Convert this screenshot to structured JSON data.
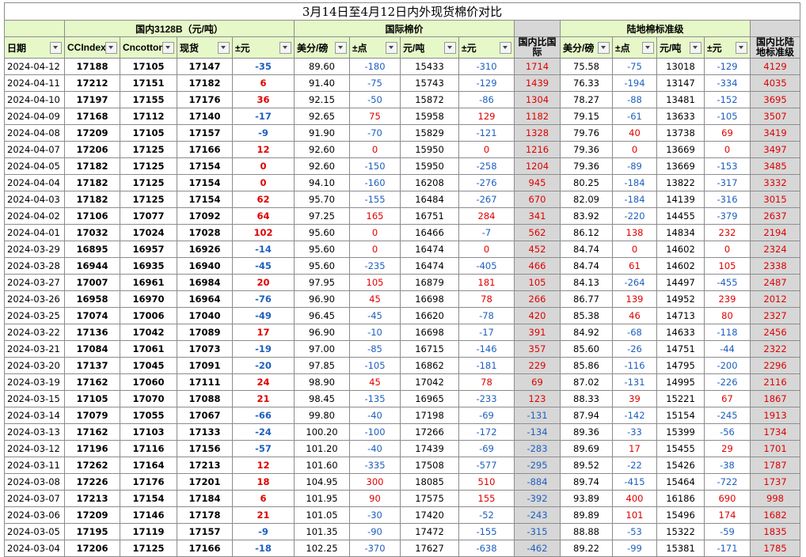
{
  "title": "3月14日至4月12日内外现货棉价对比",
  "groups": {
    "domestic": "国内3128B（元/吨）",
    "intl": "国际棉价",
    "intl_diff": "",
    "land": "陆地棉标准级",
    "land_diff": ""
  },
  "headers": [
    "日期",
    "CCIndex",
    "Cncotton",
    "现货",
    "±元",
    "美分/磅",
    "±点",
    "元/吨",
    "±元",
    "国内比国际",
    "美分/磅",
    "±点",
    "元/吨",
    "±元",
    "国内比陆地标准级"
  ],
  "rows": [
    [
      "2024-04-12",
      "17188",
      "17105",
      "17147",
      "-35",
      "89.60",
      "-180",
      "15433",
      "-310",
      "1714",
      "75.58",
      "-75",
      "13018",
      "-129",
      "4129"
    ],
    [
      "2024-04-11",
      "17212",
      "17151",
      "17182",
      "6",
      "91.40",
      "-75",
      "15743",
      "-129",
      "1439",
      "76.33",
      "-194",
      "13147",
      "-334",
      "4035"
    ],
    [
      "2024-04-10",
      "17197",
      "17155",
      "17176",
      "36",
      "92.15",
      "-50",
      "15872",
      "-86",
      "1304",
      "78.27",
      "-88",
      "13481",
      "-152",
      "3695"
    ],
    [
      "2024-04-09",
      "17168",
      "17112",
      "17140",
      "-17",
      "92.65",
      "75",
      "15958",
      "129",
      "1182",
      "79.15",
      "-61",
      "13633",
      "-105",
      "3507"
    ],
    [
      "2024-04-08",
      "17209",
      "17105",
      "17157",
      "-9",
      "91.90",
      "-70",
      "15829",
      "-121",
      "1328",
      "79.76",
      "40",
      "13738",
      "69",
      "3419"
    ],
    [
      "2024-04-07",
      "17206",
      "17125",
      "17166",
      "12",
      "92.60",
      "0",
      "15950",
      "0",
      "1216",
      "79.36",
      "0",
      "13669",
      "0",
      "3497"
    ],
    [
      "2024-04-05",
      "17182",
      "17125",
      "17154",
      "0",
      "92.60",
      "-150",
      "15950",
      "-258",
      "1204",
      "79.36",
      "-89",
      "13669",
      "-153",
      "3485"
    ],
    [
      "2024-04-04",
      "17182",
      "17125",
      "17154",
      "0",
      "94.10",
      "-160",
      "16208",
      "-276",
      "945",
      "80.25",
      "-184",
      "13822",
      "-317",
      "3332"
    ],
    [
      "2024-04-03",
      "17182",
      "17125",
      "17154",
      "62",
      "95.70",
      "-155",
      "16484",
      "-267",
      "670",
      "82.09",
      "-184",
      "14139",
      "-316",
      "3015"
    ],
    [
      "2024-04-02",
      "17106",
      "17077",
      "17092",
      "64",
      "97.25",
      "165",
      "16751",
      "284",
      "341",
      "83.92",
      "-220",
      "14455",
      "-379",
      "2637"
    ],
    [
      "2024-04-01",
      "17032",
      "17024",
      "17028",
      "102",
      "95.60",
      "0",
      "16466",
      "-7",
      "562",
      "86.12",
      "138",
      "14834",
      "232",
      "2194"
    ],
    [
      "2024-03-29",
      "16895",
      "16957",
      "16926",
      "-14",
      "95.60",
      "0",
      "16474",
      "0",
      "452",
      "84.74",
      "0",
      "14602",
      "0",
      "2324"
    ],
    [
      "2024-03-28",
      "16944",
      "16935",
      "16940",
      "-45",
      "95.60",
      "-235",
      "16474",
      "-405",
      "466",
      "84.74",
      "61",
      "14602",
      "105",
      "2338"
    ],
    [
      "2024-03-27",
      "17007",
      "16961",
      "16984",
      "20",
      "97.95",
      "105",
      "16879",
      "181",
      "105",
      "84.13",
      "-264",
      "14497",
      "-455",
      "2487"
    ],
    [
      "2024-03-26",
      "16958",
      "16970",
      "16964",
      "-76",
      "96.90",
      "45",
      "16698",
      "78",
      "266",
      "86.77",
      "139",
      "14952",
      "239",
      "2012"
    ],
    [
      "2024-03-25",
      "17074",
      "17006",
      "17040",
      "-49",
      "96.45",
      "-45",
      "16620",
      "-78",
      "420",
      "85.38",
      "46",
      "14713",
      "80",
      "2327"
    ],
    [
      "2024-03-22",
      "17136",
      "17042",
      "17089",
      "17",
      "96.90",
      "-10",
      "16698",
      "-17",
      "391",
      "84.92",
      "-68",
      "14633",
      "-118",
      "2456"
    ],
    [
      "2024-03-21",
      "17084",
      "17061",
      "17073",
      "-19",
      "97.00",
      "-85",
      "16715",
      "-146",
      "357",
      "85.60",
      "-26",
      "14751",
      "-44",
      "2322"
    ],
    [
      "2024-03-20",
      "17137",
      "17045",
      "17091",
      "-20",
      "97.85",
      "-105",
      "16862",
      "-181",
      "229",
      "85.86",
      "-116",
      "14795",
      "-200",
      "2296"
    ],
    [
      "2024-03-19",
      "17162",
      "17060",
      "17111",
      "24",
      "98.90",
      "45",
      "17042",
      "78",
      "69",
      "87.02",
      "-131",
      "14995",
      "-226",
      "2116"
    ],
    [
      "2024-03-15",
      "17105",
      "17070",
      "17088",
      "21",
      "98.45",
      "-135",
      "16965",
      "-233",
      "123",
      "88.33",
      "39",
      "15221",
      "67",
      "1867"
    ],
    [
      "2024-03-14",
      "17079",
      "17055",
      "17067",
      "-66",
      "99.80",
      "-40",
      "17198",
      "-69",
      "-131",
      "87.94",
      "-142",
      "15154",
      "-245",
      "1913"
    ],
    [
      "2024-03-13",
      "17162",
      "17103",
      "17133",
      "-24",
      "100.20",
      "-100",
      "17266",
      "-172",
      "-134",
      "89.36",
      "-33",
      "15399",
      "-56",
      "1734"
    ],
    [
      "2024-03-12",
      "17196",
      "17116",
      "17156",
      "-57",
      "101.20",
      "-40",
      "17439",
      "-69",
      "-283",
      "89.69",
      "17",
      "15455",
      "29",
      "1701"
    ],
    [
      "2024-03-11",
      "17262",
      "17164",
      "17213",
      "12",
      "101.60",
      "-335",
      "17508",
      "-577",
      "-295",
      "89.52",
      "-22",
      "15426",
      "-38",
      "1787"
    ],
    [
      "2024-03-08",
      "17226",
      "17176",
      "17201",
      "18",
      "104.95",
      "300",
      "18085",
      "510",
      "-884",
      "89.74",
      "-415",
      "15464",
      "-722",
      "1737"
    ],
    [
      "2024-03-07",
      "17213",
      "17154",
      "17184",
      "6",
      "101.95",
      "90",
      "17575",
      "155",
      "-392",
      "93.89",
      "400",
      "16186",
      "690",
      "998"
    ],
    [
      "2024-03-06",
      "17209",
      "17146",
      "17178",
      "21",
      "101.05",
      "-30",
      "17420",
      "-52",
      "-243",
      "89.89",
      "101",
      "15496",
      "174",
      "1682"
    ],
    [
      "2024-03-05",
      "17195",
      "17119",
      "17157",
      "-9",
      "101.35",
      "-90",
      "17472",
      "-155",
      "-315",
      "88.88",
      "-53",
      "15322",
      "-59",
      "1835"
    ],
    [
      "2024-03-04",
      "17206",
      "17125",
      "17166",
      "-18",
      "102.25",
      "-370",
      "17627",
      "-638",
      "-462",
      "89.22",
      "-99",
      "15381",
      "-171",
      "1785"
    ]
  ]
}
